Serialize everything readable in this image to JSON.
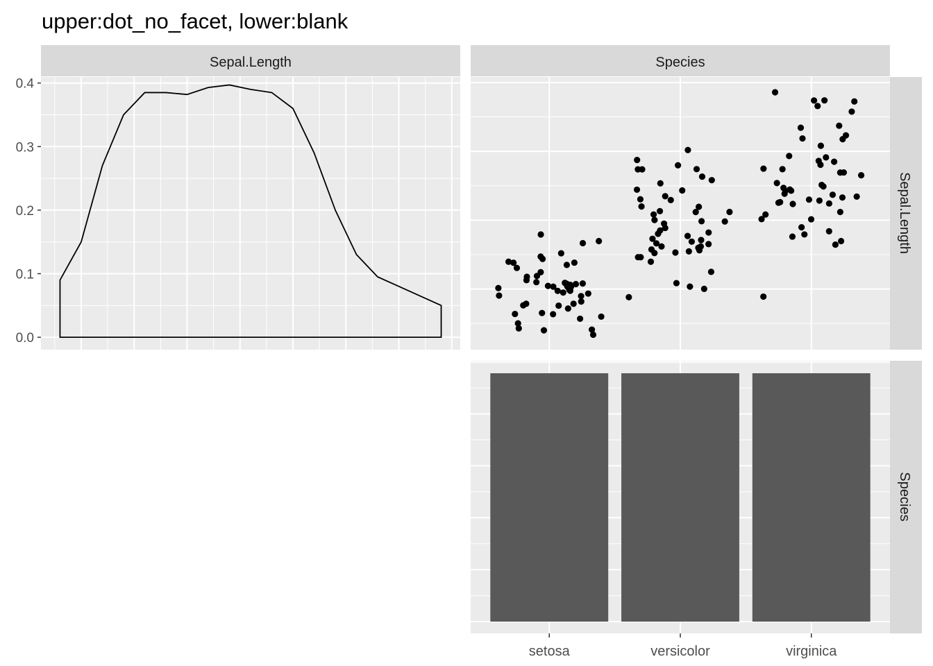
{
  "chart_data": {
    "type": "scatter",
    "title": "upper:dot_no_facet, lower:blank",
    "variables": [
      "Sepal.Length",
      "Species"
    ],
    "colors": {
      "panel_bg": "#EBEBEB",
      "strip_bg": "#D9D9D9",
      "grid": "#FFFFFF",
      "bar": "#595959",
      "point": "#000000",
      "line": "#000000"
    },
    "panels": {
      "density": {
        "row": "Sepal.Length",
        "col": "Sepal.Length",
        "type": "area",
        "x": [
          4.3,
          4.5,
          4.7,
          4.9,
          5.1,
          5.3,
          5.5,
          5.7,
          5.9,
          6.1,
          6.3,
          6.5,
          6.7,
          6.9,
          7.1,
          7.3,
          7.5,
          7.7,
          7.9
        ],
        "y": [
          0.09,
          0.15,
          0.27,
          0.35,
          0.385,
          0.385,
          0.382,
          0.393,
          0.397,
          0.39,
          0.385,
          0.36,
          0.29,
          0.2,
          0.13,
          0.095,
          0.08,
          0.065,
          0.05
        ],
        "ylim": [
          0,
          0.4
        ],
        "yticks": [
          "0.0",
          "0.1",
          "0.2",
          "0.3",
          "0.4"
        ],
        "grid": true
      },
      "jitter": {
        "row": "Sepal.Length",
        "col": "Species",
        "type": "scatter",
        "categories": [
          "setosa",
          "versicolor",
          "virginica"
        ],
        "series": [
          {
            "category": "setosa",
            "values": [
              5.1,
              4.9,
              4.7,
              4.6,
              5.0,
              5.4,
              4.6,
              5.0,
              4.4,
              4.9,
              5.4,
              4.8,
              4.8,
              4.3,
              5.8,
              5.7,
              5.4,
              5.1,
              5.7,
              5.1,
              5.4,
              5.1,
              4.6,
              5.1,
              4.8,
              5.0,
              5.0,
              5.2,
              5.2,
              4.7,
              4.8,
              5.4,
              5.2,
              5.5,
              4.9,
              5.0,
              5.5,
              4.9,
              4.4,
              5.1,
              5.0,
              4.5,
              4.4,
              5.0,
              5.1,
              4.8,
              5.1,
              4.6,
              5.3,
              5.0
            ]
          },
          {
            "category": "versicolor",
            "values": [
              7.0,
              6.4,
              6.9,
              5.5,
              6.5,
              5.7,
              6.3,
              4.9,
              6.6,
              5.2,
              5.0,
              5.9,
              6.0,
              6.1,
              5.6,
              6.7,
              5.6,
              5.8,
              6.2,
              5.6,
              5.9,
              6.1,
              6.3,
              6.1,
              6.4,
              6.6,
              6.8,
              6.7,
              6.0,
              5.7,
              5.5,
              5.5,
              5.8,
              6.0,
              5.4,
              6.0,
              6.7,
              6.3,
              5.6,
              5.5,
              5.5,
              6.1,
              5.8,
              5.0,
              5.6,
              5.7,
              5.7,
              6.2,
              5.1,
              5.7
            ]
          },
          {
            "category": "virginica",
            "values": [
              6.3,
              5.8,
              7.1,
              6.3,
              6.5,
              7.6,
              4.9,
              7.3,
              6.7,
              7.2,
              6.5,
              6.4,
              6.8,
              5.7,
              5.8,
              6.4,
              6.5,
              7.7,
              7.7,
              6.0,
              6.9,
              5.6,
              7.7,
              6.3,
              6.7,
              7.2,
              6.2,
              6.1,
              6.4,
              7.2,
              7.4,
              7.9,
              6.4,
              6.3,
              6.1,
              7.7,
              6.3,
              6.4,
              6.0,
              6.9,
              6.7,
              6.9,
              5.8,
              6.8,
              6.7,
              6.7,
              6.3,
              6.5,
              6.2,
              5.9
            ]
          }
        ],
        "ylim": [
          4.3,
          7.9
        ]
      },
      "bar": {
        "row": "Species",
        "col": "Species",
        "type": "bar",
        "categories": [
          "setosa",
          "versicolor",
          "virginica"
        ],
        "values": [
          50,
          50,
          50
        ],
        "ylim": [
          0,
          52.5
        ]
      },
      "blank": {
        "row": "Species",
        "col": "Sepal.Length",
        "type": "blank"
      }
    }
  }
}
